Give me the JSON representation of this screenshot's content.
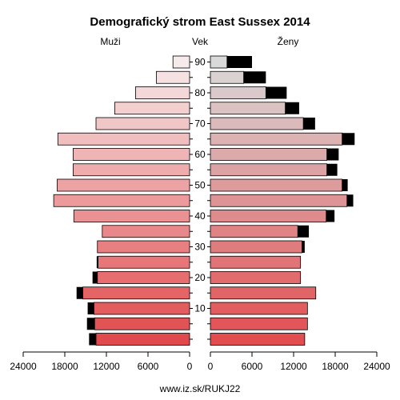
{
  "chart_data": {
    "type": "bar",
    "title": "Demografický strom East Sussex 2014",
    "left_label": "Muži",
    "center_label": "Vek",
    "right_label": "Ženy",
    "footer": "www.iz.sk/RUKJ22",
    "age_groups": [
      "0-4",
      "5-9",
      "10-14",
      "15-19",
      "20-24",
      "25-29",
      "30-34",
      "35-39",
      "40-44",
      "45-49",
      "50-54",
      "55-59",
      "60-64",
      "65-69",
      "70-74",
      "75-79",
      "80-84",
      "85-89",
      "90+"
    ],
    "age_tick_labels": [
      "10",
      "20",
      "30",
      "40",
      "50",
      "60",
      "70",
      "80",
      "90"
    ],
    "age_tick_groups": [
      2,
      4,
      6,
      8,
      10,
      12,
      14,
      16,
      18
    ],
    "x_ticks_left": [
      "24000",
      "18000",
      "12000",
      "6000",
      "0"
    ],
    "x_ticks_right": [
      "0",
      "6000",
      "12000",
      "18000",
      "24000"
    ],
    "xlim": [
      0,
      24000
    ],
    "series": [
      {
        "name": "Muži",
        "values": [
          13500,
          13700,
          13800,
          15400,
          13300,
          13200,
          13300,
          12600,
          16700,
          19600,
          19100,
          16800,
          16800,
          19000,
          13500,
          10800,
          7800,
          4800,
          2400
        ]
      },
      {
        "name": "Muži_extra",
        "values": [
          1000,
          1100,
          900,
          900,
          700,
          200,
          0,
          0,
          0,
          0,
          0,
          0,
          0,
          0,
          0,
          0,
          0,
          0,
          0
        ]
      },
      {
        "name": "Ženy",
        "values": [
          13600,
          14000,
          14000,
          15200,
          13000,
          13000,
          13200,
          12600,
          16700,
          19700,
          19000,
          16800,
          16800,
          19000,
          13400,
          10800,
          8000,
          4800,
          2400
        ]
      },
      {
        "name": "Ženy_extra",
        "values": [
          0,
          0,
          0,
          0,
          0,
          0,
          400,
          1600,
          1200,
          900,
          800,
          1500,
          1700,
          1800,
          1700,
          2000,
          3000,
          3200,
          3600
        ]
      }
    ],
    "colors": {
      "male_light": "#f6eaea",
      "male_dark": "#e14a4d",
      "female_light": "#d9d9d9",
      "female_dark": "#e24d50",
      "extra": "#000000"
    }
  }
}
